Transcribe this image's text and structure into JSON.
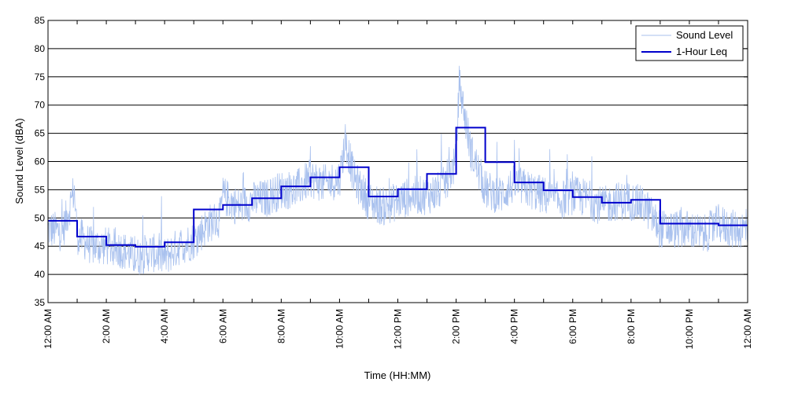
{
  "chart_data": {
    "type": "line",
    "xlabel": "Time (HH:MM)",
    "ylabel": "Sound Level (dBA)",
    "ylim": [
      35,
      85
    ],
    "yticks": [
      35,
      40,
      45,
      50,
      55,
      60,
      65,
      70,
      75,
      80,
      85
    ],
    "xlim_hours": [
      0,
      24
    ],
    "xtick_hours": [
      0,
      2,
      4,
      6,
      8,
      10,
      12,
      14,
      16,
      18,
      20,
      22,
      24
    ],
    "xtick_labels": [
      "12:00 AM",
      "2:00 AM",
      "4:00 AM",
      "6:00 AM",
      "8:00 AM",
      "10:00 AM",
      "12:00 PM",
      "2:00 PM",
      "4:00 PM",
      "6:00 PM",
      "8:00 PM",
      "10:00 PM",
      "12:00 AM"
    ],
    "grid": "horizontal",
    "legend_position": "top-right",
    "series": [
      {
        "name": "Sound Level",
        "color": "#a9c1ee",
        "style": "thin-noisy",
        "x_hours": [
          0,
          0.5,
          0.9,
          1.0,
          1.5,
          2.0,
          2.5,
          3.0,
          3.5,
          4.0,
          4.5,
          5.0,
          5.5,
          5.9,
          6.0,
          6.5,
          7.0,
          7.5,
          8.0,
          8.5,
          9.0,
          9.5,
          10.0,
          10.2,
          10.5,
          11.0,
          11.5,
          12.0,
          12.5,
          13.0,
          13.5,
          14.0,
          14.1,
          14.5,
          15.0,
          15.5,
          16.0,
          16.5,
          17.0,
          17.5,
          18.0,
          18.5,
          19.0,
          19.5,
          20.0,
          20.5,
          21.0,
          21.5,
          22.0,
          22.5,
          23.0,
          23.5,
          24.0
        ],
        "values": [
          48,
          47.5,
          55,
          47,
          45,
          45,
          44.5,
          43,
          44,
          43,
          45,
          46,
          49,
          50,
          54,
          52,
          53,
          53.5,
          55,
          55,
          57,
          56,
          57,
          64,
          57,
          53,
          52,
          53,
          54,
          54,
          55,
          60,
          74,
          62,
          55,
          54,
          56,
          55,
          54,
          53,
          54,
          53.5,
          52,
          53,
          53,
          52,
          48,
          48,
          48,
          47,
          49,
          48,
          48
        ]
      },
      {
        "name": "1-Hour Leq",
        "color": "#0000cc",
        "style": "step",
        "hour_values": [
          49.5,
          46.7,
          45.2,
          44.9,
          45.7,
          51.5,
          52.3,
          53.5,
          55.6,
          57.2,
          59.0,
          53.8,
          55.1,
          57.8,
          66.0,
          59.9,
          56.3,
          54.9,
          53.7,
          52.7,
          53.2,
          49.0,
          49.0,
          48.7
        ]
      }
    ]
  }
}
